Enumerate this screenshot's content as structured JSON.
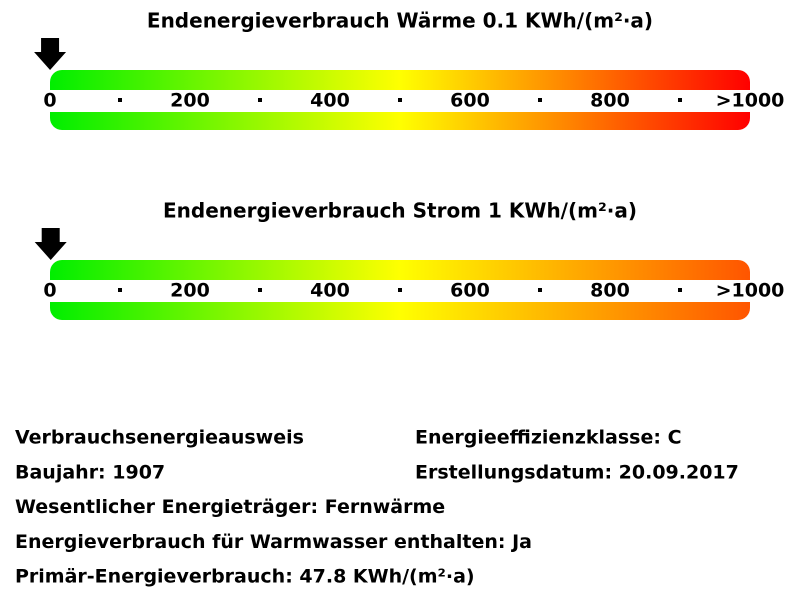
{
  "scales": [
    {
      "title": "Endenergieverbrauch Wärme 0.1 KWh/(m²·a)",
      "value": 0.1,
      "range": [
        0,
        1000
      ],
      "ticks": [
        0,
        200,
        400,
        600,
        800,
        {
          "value": 1000,
          "label": ">1000"
        }
      ],
      "gradient": [
        "#00ee00",
        "#ffff00",
        "#ff0000"
      ]
    },
    {
      "title": "Endenergieverbrauch Strom 1 KWh/(m²·a)",
      "value": 1,
      "range": [
        0,
        1000
      ],
      "ticks": [
        0,
        200,
        400,
        600,
        800,
        {
          "value": 1000,
          "label": ">1000"
        }
      ],
      "gradient": [
        "#00ee00",
        "#ffff00",
        "#ff5500"
      ]
    }
  ],
  "info": {
    "rows": [
      [
        "Verbrauchsenergieausweis",
        "Energieeffizienzklasse: C"
      ],
      [
        "Baujahr: 1907",
        "Erstellungsdatum: 20.09.2017"
      ],
      [
        "Wesentlicher Energieträger: Fernwärme"
      ],
      [
        "Energieverbrauch für Warmwasser enthalten: Ja"
      ],
      [
        "Primär-Energieverbrauch: 47.8 KWh/(m²·a)"
      ]
    ]
  }
}
